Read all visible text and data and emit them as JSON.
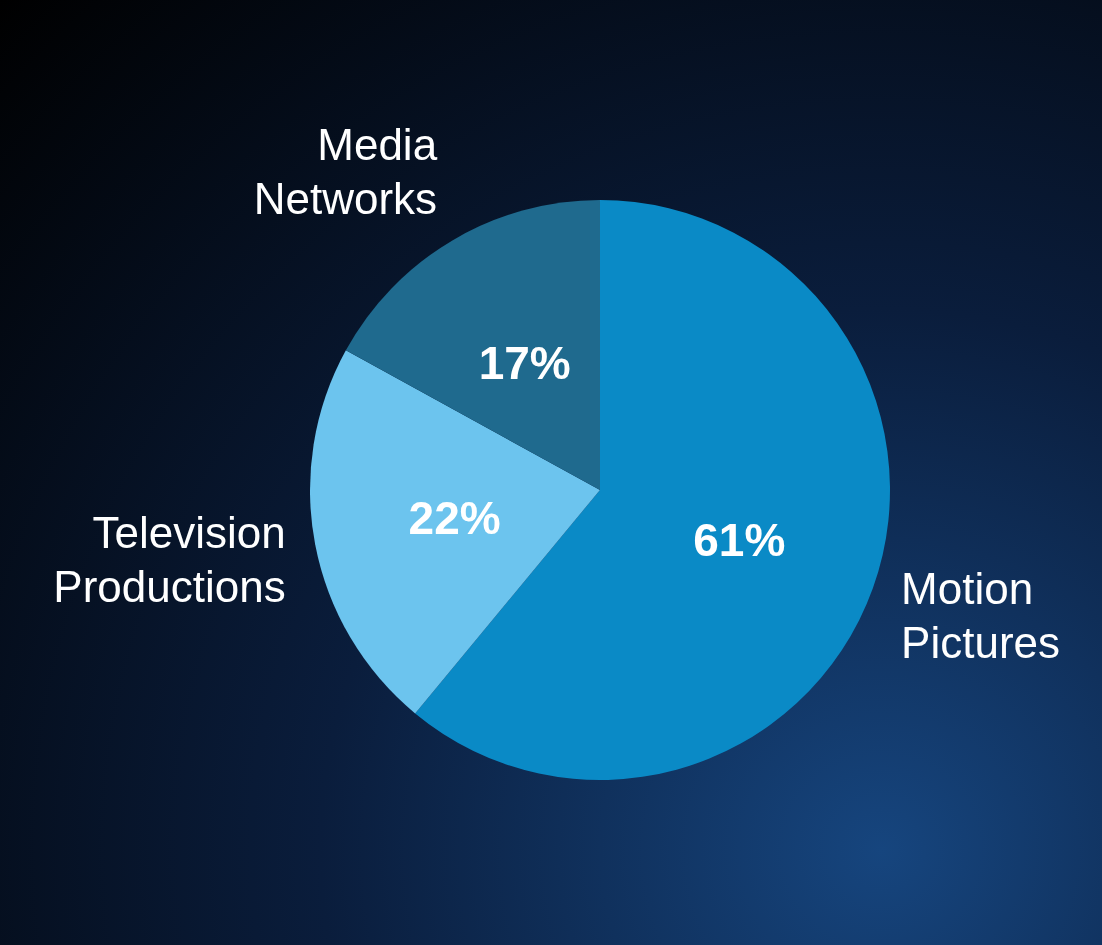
{
  "chart_data": {
    "type": "pie",
    "categories": [
      "Motion Pictures",
      "Television Productions",
      "Media Networks"
    ],
    "values": [
      61,
      22,
      17
    ],
    "colors": [
      "#0a8ac6",
      "#6cc4ee",
      "#1f6a8e"
    ],
    "value_labels": [
      "61%",
      "22%",
      "17%"
    ],
    "legend": false
  }
}
